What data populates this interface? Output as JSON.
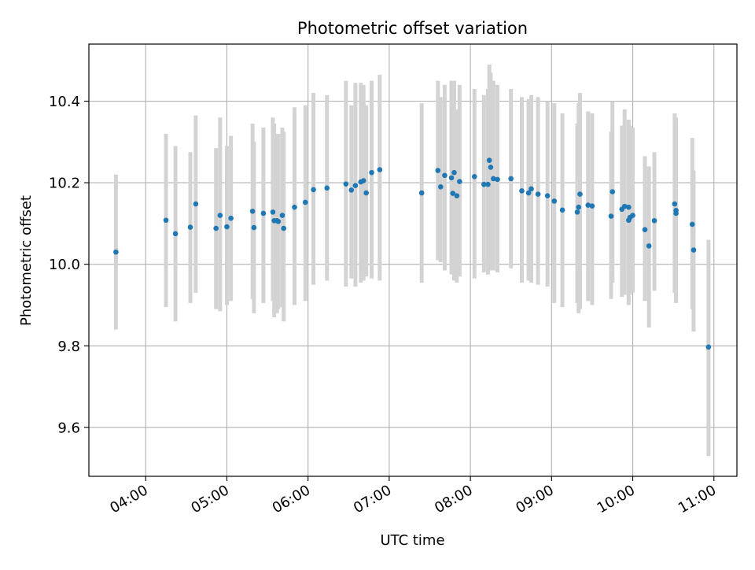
{
  "chart_data": {
    "type": "scatter",
    "title": "Photometric offset variation",
    "xlabel": "UTC time",
    "ylabel": "Photometric offset",
    "x_unit": "UTC time (HH:MM)",
    "xlim": [
      "03:18",
      "11:17"
    ],
    "ylim": [
      9.48,
      10.54
    ],
    "x_ticks": [
      "04:00",
      "05:00",
      "06:00",
      "07:00",
      "08:00",
      "09:00",
      "10:00",
      "11:00"
    ],
    "y_ticks": [
      9.6,
      9.8,
      10.0,
      10.2,
      10.4
    ],
    "y_tick_labels": [
      "9.6",
      "9.8",
      "10.0",
      "10.2",
      "10.4"
    ],
    "grid": true,
    "x_tick_rotation_deg": 30,
    "colors": {
      "points": "#1f77b4",
      "error_bars": "#d3d3d3",
      "grid": "#b0b0b0",
      "axes": "#000000"
    },
    "series": [
      {
        "x": [
          "03:38",
          "04:15",
          "04:22",
          "04:33",
          "04:37",
          "04:52",
          "04:55",
          "05:00",
          "05:03",
          "05:19",
          "05:20",
          "05:27",
          "05:34",
          "05:35",
          "05:37",
          "05:38",
          "05:41",
          "05:42",
          "05:50",
          "05:58",
          "06:04",
          "06:14",
          "06:28",
          "06:32",
          "06:35",
          "06:39",
          "06:41",
          "06:43",
          "06:47",
          "06:53",
          "07:24",
          "07:36",
          "07:38",
          "07:41",
          "07:46",
          "07:47",
          "07:48",
          "07:50",
          "07:52",
          "08:03",
          "08:10",
          "08:13",
          "08:14",
          "08:15",
          "08:17",
          "08:20",
          "08:30",
          "08:38",
          "08:43",
          "08:45",
          "08:50",
          "08:57",
          "09:02",
          "09:08",
          "09:19",
          "09:20",
          "09:21",
          "09:27",
          "09:30",
          "09:44",
          "09:45",
          "09:52",
          "09:54",
          "09:57",
          "09:57",
          "09:58",
          "10:00",
          "10:09",
          "10:12",
          "10:16",
          "10:31",
          "10:32",
          "10:32",
          "10:44",
          "10:45",
          "10:56"
        ],
        "y": [
          10.03,
          10.108,
          10.075,
          10.091,
          10.148,
          10.088,
          10.12,
          10.092,
          10.113,
          10.13,
          10.09,
          10.125,
          10.128,
          10.107,
          10.107,
          10.105,
          10.12,
          10.088,
          10.14,
          10.152,
          10.183,
          10.187,
          10.197,
          10.182,
          10.193,
          10.202,
          10.205,
          10.175,
          10.225,
          10.232,
          10.175,
          10.23,
          10.19,
          10.218,
          10.212,
          10.174,
          10.225,
          10.168,
          10.203,
          10.215,
          10.196,
          10.196,
          10.255,
          10.238,
          10.21,
          10.208,
          10.21,
          10.18,
          10.175,
          10.185,
          10.172,
          10.168,
          10.155,
          10.133,
          10.128,
          10.14,
          10.172,
          10.145,
          10.143,
          10.118,
          10.178,
          10.135,
          10.142,
          10.108,
          10.14,
          10.115,
          10.12,
          10.085,
          10.045,
          10.107,
          10.148,
          10.125,
          10.132,
          10.098,
          10.035,
          9.797
        ],
        "err_low": [
          9.84,
          9.895,
          9.86,
          9.905,
          9.93,
          9.89,
          9.885,
          9.9,
          9.91,
          9.915,
          9.88,
          9.905,
          9.91,
          9.87,
          9.88,
          9.89,
          9.895,
          9.86,
          9.9,
          9.91,
          9.95,
          9.96,
          9.945,
          9.965,
          9.945,
          9.955,
          9.96,
          9.97,
          9.965,
          9.96,
          9.955,
          10.01,
          10.005,
          9.985,
          9.975,
          9.985,
          9.96,
          9.955,
          9.97,
          9.965,
          9.98,
          9.975,
          9.99,
          9.985,
          9.985,
          9.98,
          9.99,
          9.955,
          9.96,
          9.955,
          9.95,
          9.945,
          9.905,
          9.895,
          9.905,
          9.88,
          9.89,
          9.91,
          9.9,
          9.915,
          9.955,
          9.92,
          9.925,
          9.905,
          9.9,
          9.925,
          9.93,
          9.91,
          9.845,
          9.935,
          9.93,
          9.91,
          9.905,
          9.89,
          9.835,
          9.53
        ],
        "err_high": [
          10.22,
          10.32,
          10.29,
          10.275,
          10.365,
          10.285,
          10.36,
          10.29,
          10.315,
          10.345,
          10.3,
          10.335,
          10.36,
          10.345,
          10.32,
          10.32,
          10.335,
          10.325,
          10.385,
          10.39,
          10.42,
          10.415,
          10.45,
          10.39,
          10.445,
          10.445,
          10.44,
          10.39,
          10.45,
          10.465,
          10.395,
          10.45,
          10.41,
          10.44,
          10.45,
          10.415,
          10.45,
          10.38,
          10.44,
          10.43,
          10.415,
          10.43,
          10.49,
          10.47,
          10.45,
          10.44,
          10.43,
          10.41,
          10.405,
          10.415,
          10.41,
          10.4,
          10.395,
          10.37,
          10.345,
          10.395,
          10.42,
          10.375,
          10.37,
          10.325,
          10.4,
          10.34,
          10.38,
          10.35,
          10.355,
          10.34,
          10.335,
          10.265,
          10.24,
          10.275,
          10.37,
          10.35,
          10.36,
          10.31,
          10.23,
          10.06
        ]
      }
    ]
  }
}
